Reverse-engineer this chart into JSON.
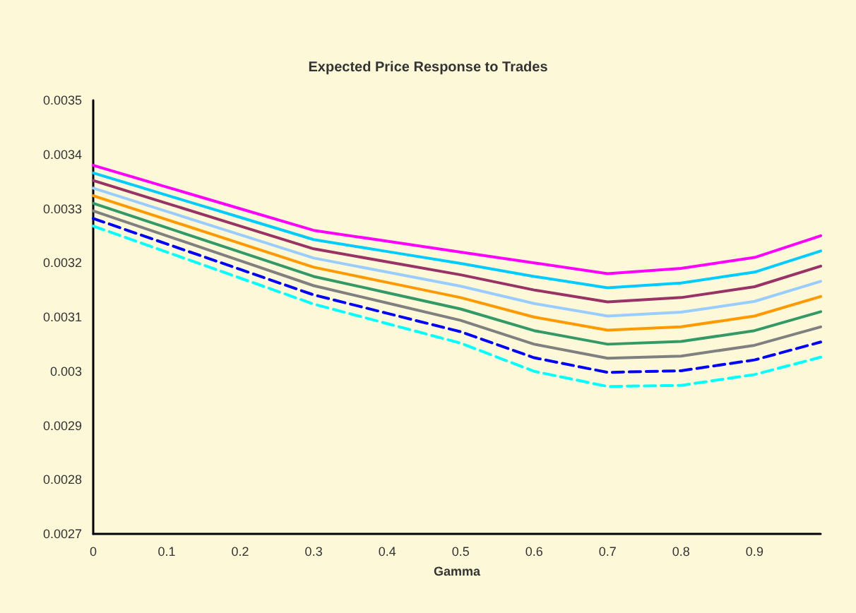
{
  "chart_data": {
    "type": "line",
    "title": "Expected Price Response to Trades",
    "xlabel": "Gamma",
    "x": [
      0,
      0.1,
      0.2,
      0.3,
      0.4,
      0.5,
      0.6,
      0.7,
      0.8,
      0.9,
      0.99
    ],
    "xlim": [
      0,
      0.99
    ],
    "xticks": [
      0,
      0.1,
      0.2,
      0.3,
      0.4,
      0.5,
      0.6,
      0.7,
      0.8,
      0.9
    ],
    "ylim": [
      0.0027,
      0.0035
    ],
    "yticks": [
      0.0027,
      0.0028,
      0.0029,
      0.003,
      0.0031,
      0.0032,
      0.0033,
      0.0034,
      0.0035
    ],
    "grid": false,
    "marker": "none",
    "line_style": "solid",
    "series": [
      {
        "color": "#ff00ff",
        "values": [
          0.00338,
          0.00334,
          0.0033,
          0.00326,
          0.00324,
          0.00322,
          0.0032,
          0.00318,
          0.00319,
          0.00321,
          0.00325
        ]
      },
      {
        "color": "#00ccff",
        "values": [
          0.003366,
          0.003325,
          0.003284,
          0.003243,
          0.003221,
          0.003199,
          0.003175,
          0.003154,
          0.003163,
          0.003183,
          0.003222
        ]
      },
      {
        "color": "#993366",
        "values": [
          0.003352,
          0.00331,
          0.003268,
          0.003226,
          0.003202,
          0.003178,
          0.00315,
          0.003128,
          0.003136,
          0.003156,
          0.003194
        ]
      },
      {
        "color": "#99ccff",
        "values": [
          0.003338,
          0.003295,
          0.003252,
          0.003209,
          0.003183,
          0.003157,
          0.003125,
          0.003102,
          0.003109,
          0.003129,
          0.003166
        ]
      },
      {
        "color": "#ff9900",
        "values": [
          0.003324,
          0.00328,
          0.003236,
          0.003192,
          0.003164,
          0.003136,
          0.0031,
          0.003076,
          0.003082,
          0.003102,
          0.003138
        ]
      },
      {
        "color": "#339966",
        "values": [
          0.00331,
          0.003265,
          0.00322,
          0.003175,
          0.003145,
          0.003115,
          0.003075,
          0.00305,
          0.003055,
          0.003075,
          0.00311
        ]
      },
      {
        "color": "#808080",
        "values": [
          0.003296,
          0.00325,
          0.003204,
          0.003158,
          0.003126,
          0.003094,
          0.00305,
          0.003024,
          0.003028,
          0.003048,
          0.003082
        ]
      },
      {
        "color": "#0000ff",
        "line_style": "dashed",
        "values": [
          0.003282,
          0.003235,
          0.003188,
          0.003141,
          0.003107,
          0.003073,
          0.003025,
          0.002998,
          0.003001,
          0.003021,
          0.003054
        ]
      },
      {
        "color": "#00ffff",
        "line_style": "dashed",
        "values": [
          0.003268,
          0.00322,
          0.003172,
          0.003124,
          0.003088,
          0.003052,
          0.003,
          0.002972,
          0.002974,
          0.002994,
          0.003026
        ]
      }
    ]
  }
}
